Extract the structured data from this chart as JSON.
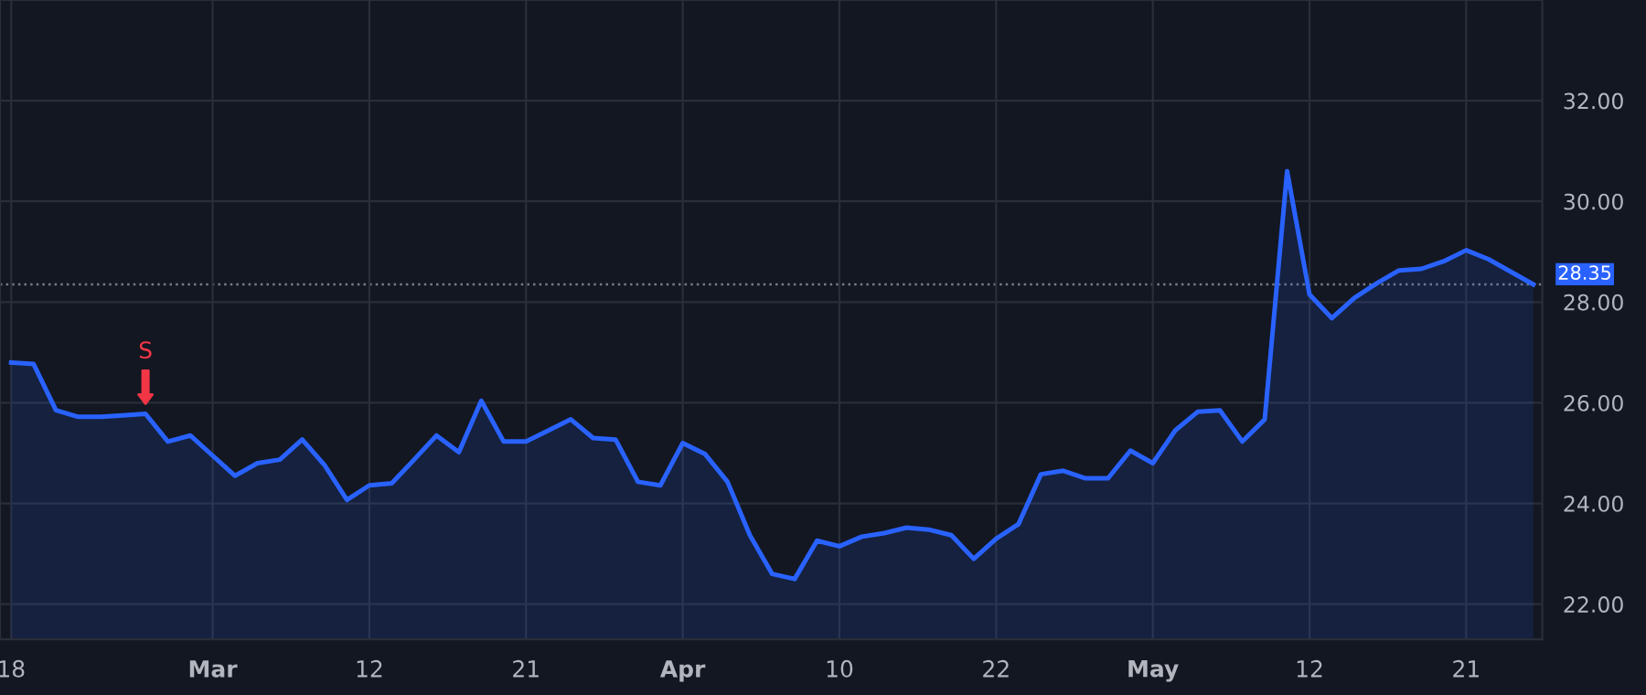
{
  "chart_data": {
    "type": "area",
    "categories": [
      "18",
      null,
      null,
      null,
      null,
      null,
      null,
      null,
      null,
      "Mar",
      null,
      null,
      null,
      null,
      null,
      null,
      "12",
      null,
      null,
      null,
      null,
      null,
      null,
      "21",
      null,
      null,
      null,
      null,
      null,
      null,
      "Apr",
      null,
      null,
      null,
      null,
      null,
      null,
      "10",
      null,
      null,
      null,
      null,
      null,
      null,
      "22",
      null,
      null,
      null,
      null,
      null,
      null,
      "May",
      null,
      null,
      null,
      null,
      null,
      null,
      "12",
      null,
      null,
      null,
      null,
      null,
      null,
      "21",
      null,
      null,
      null
    ],
    "series": [
      {
        "color": "#2962ff",
        "values": [
          26.8,
          26.77,
          25.85,
          25.72,
          25.72,
          25.75,
          25.78,
          25.23,
          25.35,
          24.95,
          24.55,
          24.8,
          24.87,
          25.27,
          24.76,
          24.07,
          24.36,
          24.4,
          24.87,
          25.35,
          25.02,
          26.04,
          25.23,
          25.23,
          25.45,
          25.67,
          25.3,
          25.27,
          24.43,
          24.36,
          25.2,
          24.98,
          24.43,
          23.37,
          22.6,
          22.5,
          23.26,
          23.15,
          23.34,
          23.41,
          23.52,
          23.48,
          23.37,
          22.9,
          23.3,
          23.59,
          24.58,
          24.65,
          24.5,
          24.5,
          25.05,
          24.8,
          25.45,
          25.82,
          25.85,
          25.23,
          25.67,
          30.6,
          28.15,
          27.68,
          28.08,
          28.37,
          28.63,
          28.66,
          28.81,
          29.03,
          28.85,
          28.6,
          28.35
        ]
      }
    ],
    "ylim": [
      21.3,
      34.0
    ],
    "yticks": [
      {
        "value": 22,
        "label": "22.00"
      },
      {
        "value": 24,
        "label": "24.00"
      },
      {
        "value": 26,
        "label": "26.00"
      },
      {
        "value": 28,
        "label": "28.00"
      },
      {
        "value": 30,
        "label": "30.00"
      },
      {
        "value": 32,
        "label": "32.00"
      }
    ],
    "grid": true,
    "ref_lines": [
      {
        "axis": "y",
        "value": 28.35,
        "label": "28.35",
        "color": "#787b86",
        "line_style": "dotted"
      }
    ],
    "annotations": [
      {
        "text": "S",
        "y": 25.78
      }
    ]
  }
}
